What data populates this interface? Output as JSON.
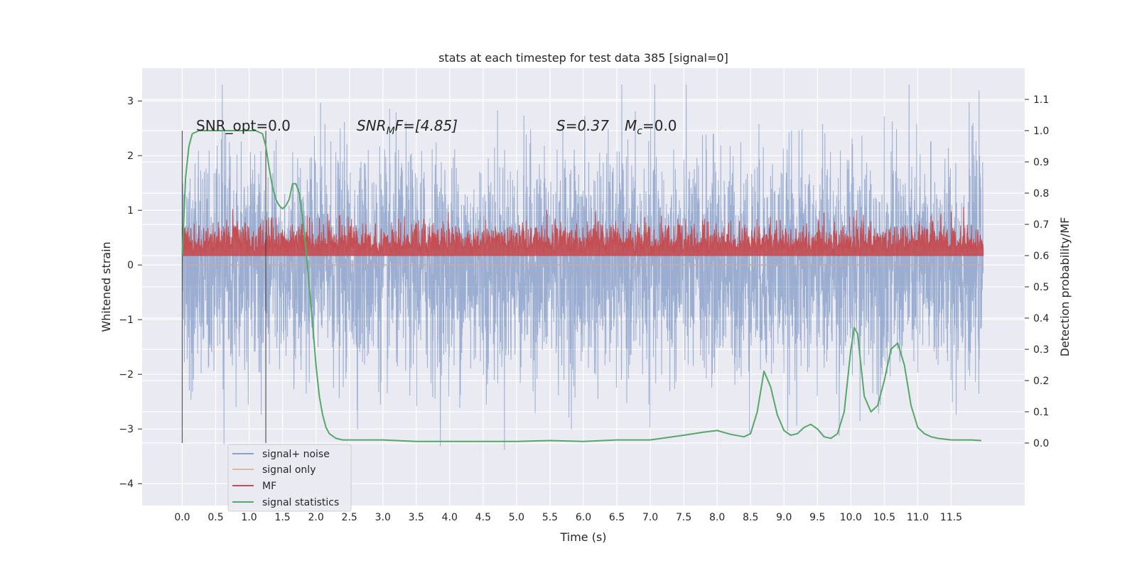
{
  "chart_data": {
    "type": "line",
    "title": "stats at each timestep for test data 385 [signal=0]",
    "xlabel": "Time (s)",
    "ylabel": "Whitened strain",
    "ylabel_right": "Detection probability/MF",
    "xlim": [
      -0.6,
      12.6
    ],
    "ylim": [
      -4.4,
      3.6
    ],
    "ylim_right": [
      -0.2,
      1.2
    ],
    "x_ticks": [
      "0.0",
      "0.5",
      "1.0",
      "1.5",
      "2.0",
      "2.5",
      "3.0",
      "3.5",
      "4.0",
      "4.5",
      "5.0",
      "5.5",
      "6.0",
      "6.5",
      "7.0",
      "7.5",
      "8.0",
      "8.5",
      "9.0",
      "9.5",
      "10.0",
      "10.5",
      "11.0",
      "11.5"
    ],
    "y_ticks": [
      "3",
      "2",
      "1",
      "0",
      "−1",
      "−2",
      "−3",
      "−4"
    ],
    "y_ticks_right": [
      "1.1",
      "1.0",
      "0.9",
      "0.8",
      "0.7",
      "0.6",
      "0.5",
      "0.4",
      "0.3",
      "0.2",
      "0.1",
      "0.0"
    ],
    "grid": true,
    "background": "#eaeaf2",
    "annotations": {
      "snr_opt": "SNR_opt=0.0",
      "snr_mf_main": "SNR",
      "snr_mf_sub": "M",
      "snr_mf_main2": "F=[4.85]",
      "s_stat": "S=0.37",
      "mc_main": "M",
      "mc_sub": "c",
      "mc_value": "=0.0"
    },
    "vlines": [
      0.0,
      1.25
    ],
    "series": [
      {
        "name": "signal+ noise",
        "color": "#4c72b0",
        "axis": "left",
        "kind": "noise",
        "t_start": 0.0,
        "t_end": 11.98,
        "sigma": 1.0,
        "abs_max": 3.3
      },
      {
        "name": "signal only",
        "color": "#dd8452",
        "axis": "left",
        "kind": "flat",
        "value": 0.0
      },
      {
        "name": "MF",
        "color": "#c44e52",
        "axis": "right",
        "kind": "mf",
        "base": 0.6,
        "mean_height": 0.04
      },
      {
        "name": "signal statistics",
        "color": "#55a868",
        "axis": "right",
        "kind": "line",
        "x": [
          0.0,
          0.05,
          0.1,
          0.15,
          0.25,
          0.4,
          0.6,
          0.8,
          1.0,
          1.1,
          1.2,
          1.25,
          1.3,
          1.35,
          1.4,
          1.45,
          1.5,
          1.55,
          1.6,
          1.65,
          1.7,
          1.75,
          1.8,
          1.85,
          1.9,
          1.95,
          2.0,
          2.05,
          2.1,
          2.15,
          2.2,
          2.3,
          2.4,
          2.5,
          3.0,
          3.5,
          4.0,
          4.5,
          5.0,
          5.5,
          6.0,
          6.5,
          7.0,
          7.5,
          7.8,
          8.0,
          8.2,
          8.4,
          8.5,
          8.6,
          8.7,
          8.8,
          8.9,
          9.0,
          9.1,
          9.2,
          9.3,
          9.4,
          9.5,
          9.6,
          9.7,
          9.8,
          9.9,
          10.0,
          10.05,
          10.1,
          10.15,
          10.2,
          10.3,
          10.4,
          10.5,
          10.6,
          10.7,
          10.8,
          10.9,
          11.0,
          11.1,
          11.2,
          11.3,
          11.5,
          11.8,
          11.95
        ],
        "y": [
          0.6,
          0.85,
          0.95,
          0.99,
          1.0,
          1.0,
          1.0,
          1.0,
          1.0,
          1.0,
          0.99,
          0.95,
          0.88,
          0.82,
          0.78,
          0.76,
          0.75,
          0.76,
          0.78,
          0.83,
          0.83,
          0.8,
          0.72,
          0.62,
          0.5,
          0.38,
          0.25,
          0.15,
          0.09,
          0.05,
          0.03,
          0.015,
          0.01,
          0.01,
          0.01,
          0.005,
          0.005,
          0.005,
          0.005,
          0.008,
          0.005,
          0.01,
          0.01,
          0.025,
          0.035,
          0.04,
          0.028,
          0.02,
          0.03,
          0.1,
          0.23,
          0.18,
          0.09,
          0.04,
          0.025,
          0.03,
          0.05,
          0.06,
          0.045,
          0.02,
          0.015,
          0.03,
          0.1,
          0.3,
          0.37,
          0.35,
          0.25,
          0.15,
          0.1,
          0.12,
          0.2,
          0.3,
          0.32,
          0.25,
          0.12,
          0.05,
          0.03,
          0.02,
          0.015,
          0.01,
          0.01,
          0.008
        ]
      }
    ],
    "legend": {
      "placement": "lower-left",
      "entries": [
        "signal+ noise",
        "signal only",
        "MF",
        "signal statistics"
      ]
    }
  }
}
